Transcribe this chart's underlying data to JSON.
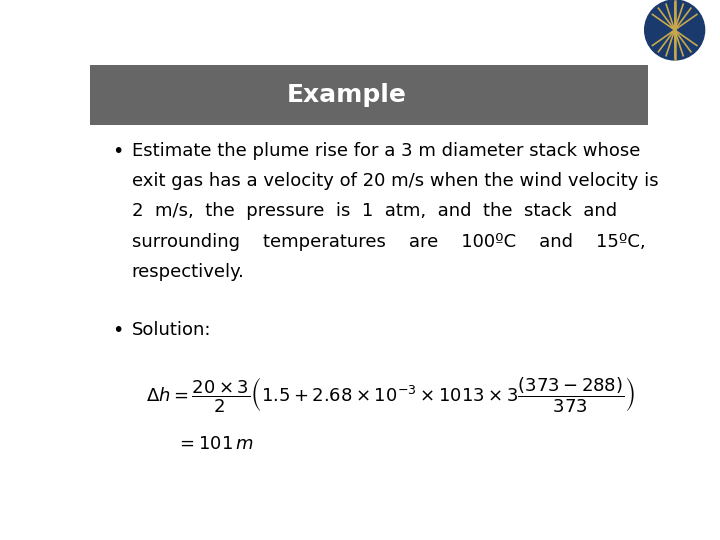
{
  "title": "Example",
  "title_bg_color": "#666666",
  "title_text_color": "#ffffff",
  "body_bg_color": "#ffffff",
  "bullet1_line1": "Estimate the plume rise for a 3 m diameter stack whose",
  "bullet1_line2": "exit gas has a velocity of 20 m/s when the wind velocity is",
  "bullet1_line3": "2  m/s,  the  pressure  is  1  atm,  and  the  stack  and",
  "bullet1_line4": "surrounding    temperatures    are    100ºC    and    15ºC,",
  "bullet1_line5": "respectively.",
  "bullet2": "Solution:",
  "formula1": "$\\Delta h = \\dfrac{20 \\times 3}{2}\\left(1.5 + 2.68 \\times 10^{-3} \\times 1013 \\times 3\\dfrac{(373-288)}{373}\\right)$",
  "formula2": "$= 101\\,m$",
  "text_color": "#000000",
  "font_size_body": 13,
  "font_size_title": 18,
  "font_size_formula": 13,
  "logo_bg": "#5a6a72",
  "logo_circle_color": "#1a3a6e",
  "logo_line_color": "#c8a84b"
}
